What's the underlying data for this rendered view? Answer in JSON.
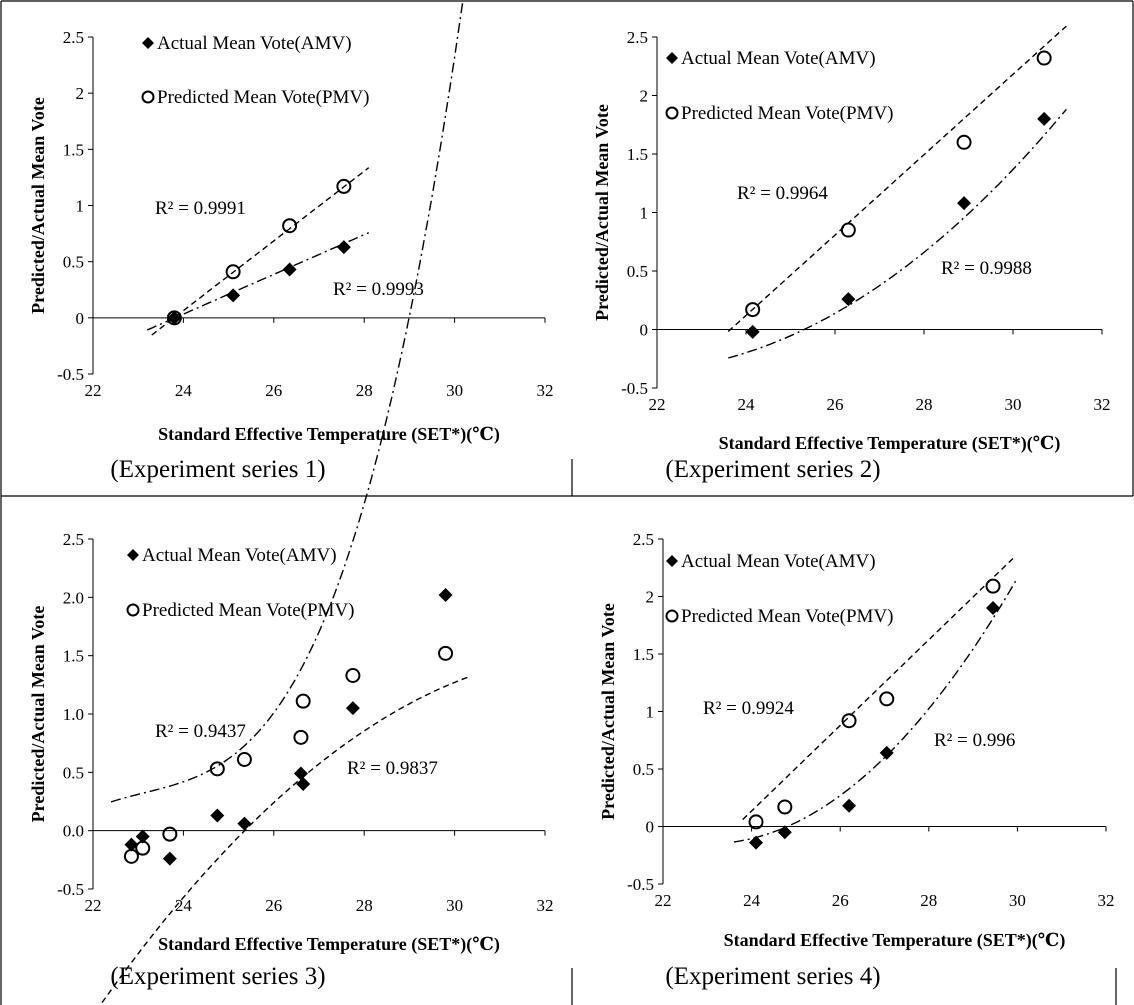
{
  "chart_data": [
    {
      "type": "scatter",
      "caption": "(Experiment series 1)",
      "xlabel": "Standard  Effective Temperature (SET*)(℃)",
      "ylabel": "Predicted/Actual Mean Vote",
      "xlim": [
        22,
        32
      ],
      "ylim": [
        -0.5,
        2.5
      ],
      "xticks": [
        "22",
        "24",
        "26",
        "28",
        "30",
        "32"
      ],
      "yticks": [
        "-0.5",
        "0",
        "0.5",
        "1",
        "1.5",
        "2",
        "2.5"
      ],
      "series": [
        {
          "name": "Actual Mean Vote(AMV)",
          "marker": "diamond",
          "x": [
            23.8,
            25.1,
            26.35,
            27.55
          ],
          "y": [
            0.0,
            0.2,
            0.43,
            0.63
          ],
          "trend": {
            "style": "dashdot",
            "coeffs": [
              -4.21,
              0.1768
            ],
            "x_range": [
              23.2,
              28.1
            ]
          },
          "r2": "R² = 0.9993"
        },
        {
          "name": "Predicted Mean Vote(PMV)",
          "marker": "circle",
          "x": [
            23.8,
            25.1,
            26.35,
            27.55
          ],
          "y": [
            0.0,
            0.41,
            0.82,
            1.17
          ],
          "trend": {
            "style": "dash",
            "coeffs": [
              -7.383,
              0.3103
            ],
            "x_range": [
              23.3,
              28.1
            ]
          },
          "r2": "R² = 0.9991"
        }
      ]
    },
    {
      "type": "scatter",
      "caption": "(Experiment series 2)",
      "xlabel": "Standard  Effective Temperature (SET*)(℃)",
      "ylabel": "Predicted/Actual Mean Vote",
      "xlim": [
        22,
        32
      ],
      "ylim": [
        -0.5,
        2.5
      ],
      "xticks": [
        "22",
        "24",
        "26",
        "28",
        "30",
        "32"
      ],
      "yticks": [
        "-0.5",
        "0",
        "0.5",
        "1",
        "1.5",
        "2",
        "2.5"
      ],
      "series": [
        {
          "name": "Actual Mean Vote(AMV)",
          "marker": "diamond",
          "x": [
            24.15,
            26.3,
            28.9,
            30.7
          ],
          "y": [
            -0.02,
            0.26,
            1.08,
            1.8
          ],
          "trend": {
            "style": "dashdot",
            "coeffs": [
              10.29,
              -0.9955,
              0.02327
            ],
            "x_range": [
              23.6,
              31.2
            ]
          },
          "r2": "R² = 0.9988"
        },
        {
          "name": "Predicted Mean Vote(PMV)",
          "marker": "circle",
          "x": [
            24.15,
            26.3,
            28.9,
            30.7
          ],
          "y": [
            0.17,
            0.85,
            1.6,
            2.32
          ],
          "trend": {
            "style": "dash",
            "coeffs": [
              -8.124,
              0.3435
            ],
            "x_range": [
              23.6,
              31.2
            ]
          },
          "r2": "R² = 0.9964"
        }
      ]
    },
    {
      "type": "scatter",
      "caption": "(Experiment series 3)",
      "xlabel": "Standard  Effective Temperature (SET*)(℃)",
      "ylabel": "Predicted/Actual Mean Vote",
      "xlim": [
        22,
        32
      ],
      "ylim": [
        -0.5,
        2.5
      ],
      "xticks": [
        "22",
        "24",
        "26",
        "28",
        "30",
        "32"
      ],
      "yticks": [
        "-0.5",
        "0.0",
        "0.5",
        "1.0",
        "1.5",
        "2.0",
        "2.5"
      ],
      "series": [
        {
          "name": "Actual Mean Vote(AMV)",
          "marker": "diamond",
          "x": [
            22.85,
            23.1,
            23.7,
            24.75,
            25.35,
            26.6,
            26.65,
            27.75,
            29.8
          ],
          "y": [
            -0.12,
            -0.05,
            -0.24,
            0.13,
            0.06,
            0.49,
            0.4,
            1.05,
            2.02
          ],
          "trend": {
            "style": "dashdot",
            "coeffs": [
              -218.18,
              28.14,
              -1.2121,
              0.017463
            ],
            "x_range": [
              22.4,
              30.3
            ]
          },
          "r2": "R² = 0.9837"
        },
        {
          "name": "Predicted Mean Vote(PMV)",
          "marker": "circle",
          "x": [
            22.85,
            23.1,
            23.7,
            24.75,
            25.35,
            26.6,
            26.65,
            27.75,
            29.8
          ],
          "y": [
            -0.22,
            -0.15,
            -0.03,
            0.53,
            0.61,
            0.8,
            1.11,
            1.33,
            1.52
          ],
          "trend": {
            "style": "dash",
            "coeffs": [
              -25.81,
              1.647,
              -0.02481
            ],
            "x_range": [
              22.2,
              30.3
            ]
          },
          "r2": "R² = 0.9437"
        }
      ]
    },
    {
      "type": "scatter",
      "caption": "(Experiment series 4)",
      "xlabel": "Standard  Effective Temperature (SET*)(℃)",
      "ylabel": "Predicted/Actual Mean Vote",
      "xlim": [
        22,
        32
      ],
      "ylim": [
        -0.5,
        2.5
      ],
      "xticks": [
        "22",
        "24",
        "26",
        "28",
        "30",
        "32"
      ],
      "yticks": [
        "-0.5",
        "0",
        "0.5",
        "1",
        "1.5",
        "2",
        "2.5"
      ],
      "series": [
        {
          "name": "Actual Mean Vote(AMV)",
          "marker": "diamond",
          "x": [
            24.1,
            24.75,
            26.2,
            27.05,
            29.45
          ],
          "y": [
            -0.14,
            -0.05,
            0.18,
            0.64,
            1.9
          ],
          "trend": {
            "style": "dashdot",
            "coeffs": [
              25.155,
              -2.1965,
              0.047667
            ],
            "x_range": [
              23.6,
              30.0
            ]
          },
          "r2": "R² = 0.996"
        },
        {
          "name": "Predicted Mean Vote(PMV)",
          "marker": "circle",
          "x": [
            24.1,
            24.75,
            26.2,
            27.05,
            29.45
          ],
          "y": [
            0.04,
            0.17,
            0.92,
            1.11,
            2.09
          ],
          "trend": {
            "style": "dash",
            "coeffs": [
              -8.798,
              0.3722
            ],
            "x_range": [
              23.8,
              29.9
            ]
          },
          "r2": "R² = 0.9924"
        }
      ]
    }
  ]
}
